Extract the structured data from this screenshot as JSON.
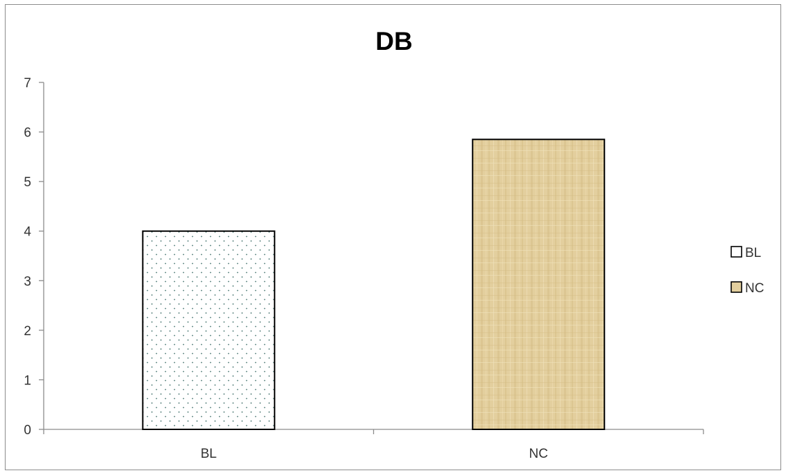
{
  "chart_data": {
    "type": "bar",
    "title": "DB",
    "xlabel": "",
    "ylabel": "",
    "categories": [
      "BL",
      "NC"
    ],
    "values": [
      4.0,
      5.85
    ],
    "ylim": [
      0,
      7
    ],
    "yticks": [
      0,
      1,
      2,
      3,
      4,
      5,
      6,
      7
    ],
    "grid": false,
    "legend": {
      "placement": "right",
      "entries": [
        "BL",
        "NC"
      ]
    },
    "bar_styles": [
      {
        "fill": "#ffffff",
        "pattern": "dots",
        "pattern_color": "#3f6f6a",
        "stroke": "#000000"
      },
      {
        "fill": "#e3cf9e",
        "pattern": "papyrus-texture",
        "stroke": "#000000"
      }
    ]
  }
}
